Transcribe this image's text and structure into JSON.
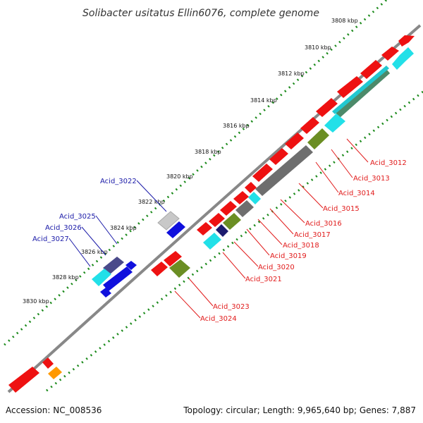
{
  "map": {
    "title": "Solibacter usitatus Ellin6076, complete genome",
    "accession": "Accession: NC_008536",
    "topology": "Topology: circular; Length: 9,965,640 bp; Genes: 7,887",
    "kbp_labels": [
      "3808 kbp",
      "3810 kbp",
      "3812 kbp",
      "3814 kbp",
      "3816 kbp",
      "3818 kbp",
      "3820 kbp",
      "3822 kbp",
      "3824 kbp",
      "3826 kbp",
      "3828 kbp",
      "3830 kbp"
    ],
    "labels_right": [
      "Acid_3012",
      "Acid_3013",
      "Acid_3014",
      "Acid_3015",
      "Acid_3016",
      "Acid_3017",
      "Acid_3018",
      "Acid_3019",
      "Acid_3020",
      "Acid_3021",
      "Acid_3023",
      "Acid_3024"
    ],
    "labels_left": [
      "Acid_3022",
      "Acid_3025",
      "Acid_3026",
      "Acid_3027"
    ],
    "colors": {
      "forward_gene": "#ee1111",
      "reverse_gene": "#1010dd",
      "cyan_feature": "#22e0e8",
      "olive_feature": "#6b8e23",
      "gray_feature": "#6e6e6e",
      "navy_feature": "#1c1c6e",
      "orange_feature": "#ff9900",
      "backbone": "#888888",
      "tick_dots": "#1b8a1b"
    }
  }
}
